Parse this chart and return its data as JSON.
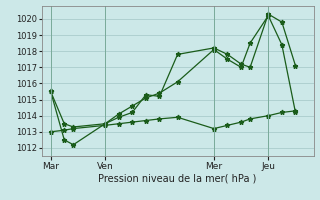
{
  "xlabel": "Pression niveau de la mer( hPa )",
  "bg_color": "#cce8e8",
  "grid_color": "#aacccc",
  "line_color": "#1a5c1a",
  "ylim": [
    1011.5,
    1020.8
  ],
  "yticks": [
    1012,
    1013,
    1014,
    1015,
    1016,
    1017,
    1018,
    1019,
    1020
  ],
  "day_labels": [
    "Mar",
    "Ven",
    "Mer",
    "Jeu"
  ],
  "day_positions": [
    0,
    24,
    72,
    96
  ],
  "xlim": [
    -4,
    116
  ],
  "series1_x": [
    0,
    6,
    10,
    24,
    30,
    36,
    42,
    48,
    56,
    72,
    78,
    84,
    88,
    96,
    102,
    108
  ],
  "series1_y": [
    1015.5,
    1013.5,
    1013.3,
    1013.5,
    1013.9,
    1014.2,
    1015.3,
    1015.2,
    1017.8,
    1018.2,
    1017.8,
    1017.2,
    1017.0,
    1020.3,
    1019.8,
    1017.1
  ],
  "series2_x": [
    0,
    6,
    10,
    24,
    30,
    36,
    42,
    48,
    56,
    72,
    78,
    84,
    88,
    96,
    102,
    108
  ],
  "series2_y": [
    1015.5,
    1012.5,
    1012.2,
    1013.5,
    1014.1,
    1014.6,
    1015.1,
    1015.4,
    1016.1,
    1018.1,
    1017.5,
    1017.0,
    1018.5,
    1020.2,
    1018.4,
    1014.2
  ],
  "series3_x": [
    0,
    6,
    10,
    24,
    30,
    36,
    42,
    48,
    56,
    72,
    78,
    84,
    88,
    96,
    102,
    108
  ],
  "series3_y": [
    1013.0,
    1013.1,
    1013.2,
    1013.4,
    1013.5,
    1013.6,
    1013.7,
    1013.8,
    1013.9,
    1013.2,
    1013.4,
    1013.6,
    1013.8,
    1014.0,
    1014.2,
    1014.3
  ],
  "marker": "*",
  "marker_size": 3.5,
  "linewidth": 0.9
}
